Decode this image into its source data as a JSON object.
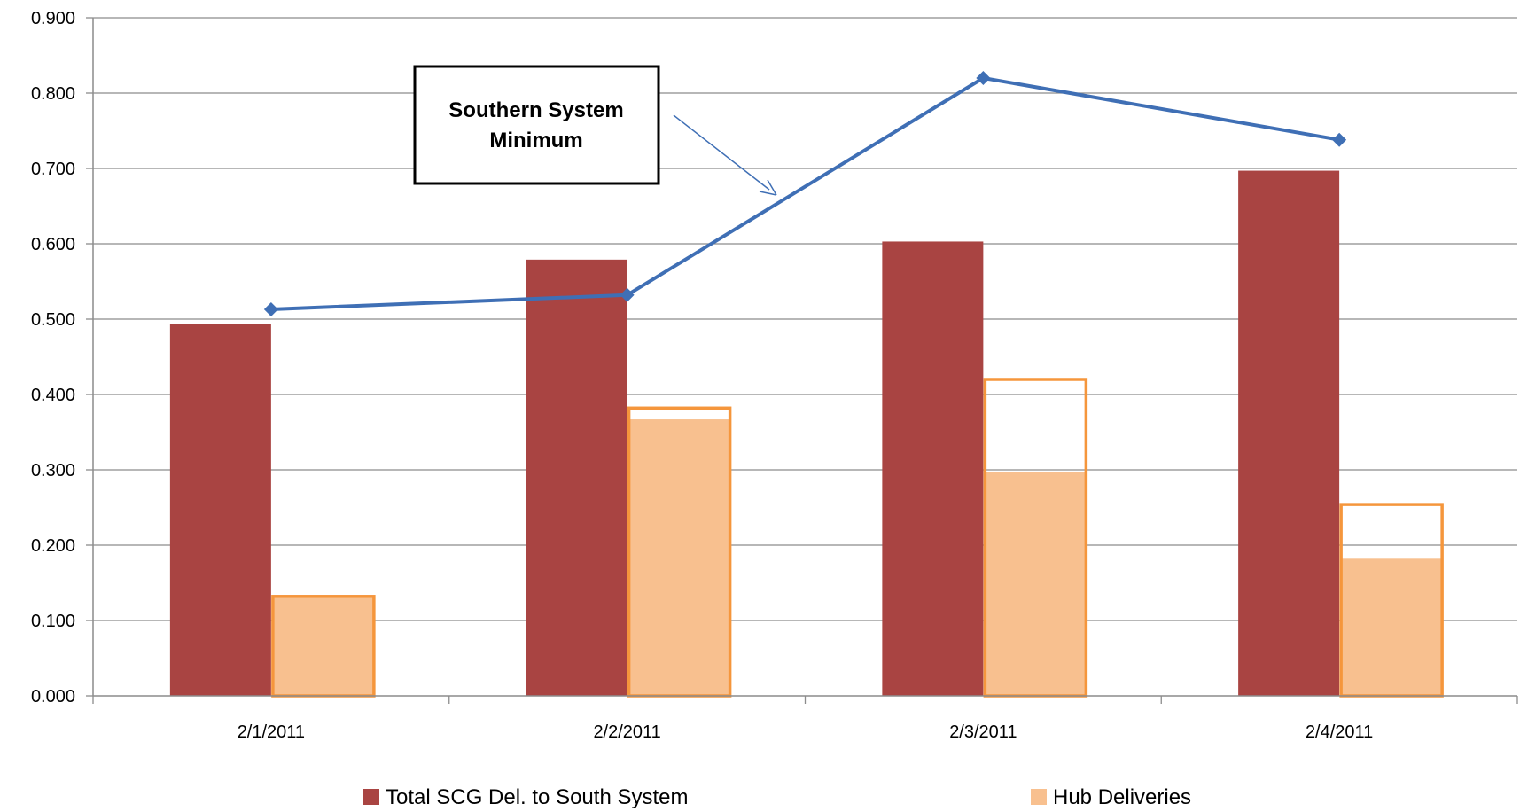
{
  "chart_data": {
    "type": "bar",
    "categories": [
      "2/1/2011",
      "2/2/2011",
      "2/3/2011",
      "2/4/2011"
    ],
    "series": [
      {
        "name": "Total SCG Del. to South System",
        "kind": "bar",
        "color": "#a94442",
        "values": [
          0.493,
          0.579,
          0.603,
          0.697
        ]
      },
      {
        "name": "Hub Deliveries",
        "kind": "bar",
        "color": "#f8c08f",
        "values": [
          0.132,
          0.367,
          0.297,
          0.182
        ]
      },
      {
        "kind": "bar-outline",
        "color": "#f5963c",
        "values": [
          0.132,
          0.382,
          0.42,
          0.254
        ]
      },
      {
        "kind": "line",
        "color": "#3f6fb5",
        "values": [
          0.513,
          0.532,
          0.82,
          0.738
        ]
      }
    ],
    "ylim": [
      0,
      0.9
    ],
    "yticks": [
      "0.000",
      "0.100",
      "0.200",
      "0.300",
      "0.400",
      "0.500",
      "0.600",
      "0.700",
      "0.800",
      "0.900"
    ],
    "grid": true,
    "legend": {
      "placement": "bottom",
      "items": [
        "Total SCG Del. to South System",
        "Hub Deliveries"
      ]
    },
    "annotations": [
      {
        "lines": [
          "Southern System",
          "Minimum"
        ],
        "points_to": "line"
      }
    ],
    "xlabel": "",
    "ylabel": "",
    "title": ""
  }
}
